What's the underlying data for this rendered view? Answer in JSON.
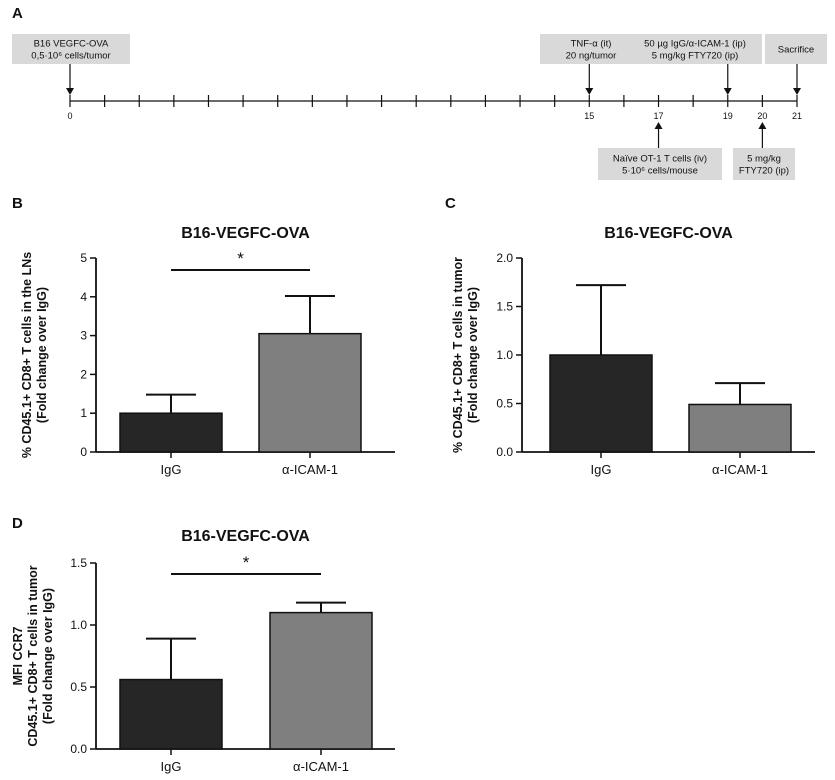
{
  "colors": {
    "igg": "#262626",
    "aicam": "#7f7f7f",
    "box": "#d9d9d9",
    "axis": "#111111"
  },
  "timeline": {
    "letter": "A",
    "days": [
      0,
      15,
      17,
      19,
      20,
      21
    ],
    "max_day": 21,
    "events": [
      {
        "day": 0,
        "side": "above",
        "lines": [
          "B16 VEGFC-OVA",
          "0,5·10⁶ cells/tumor"
        ]
      },
      {
        "day": 15,
        "side": "above",
        "lines": [
          "TNF-α (it)",
          "20 ng/tumor"
        ]
      },
      {
        "day": 19,
        "side": "above",
        "lines": [
          "50 µg IgG/α-ICAM-1 (ip)",
          "5 mg/kg FTY720 (ip)"
        ]
      },
      {
        "day": 21,
        "side": "above",
        "lines": [
          "Sacrifice"
        ]
      },
      {
        "day": 17,
        "side": "below",
        "lines": [
          "Naïve OT-1 T cells (iv)",
          "5·10⁶ cells/mouse"
        ]
      },
      {
        "day": 20,
        "side": "below",
        "lines": [
          "5 mg/kg",
          "FTY720 (ip)"
        ]
      }
    ]
  },
  "chart_data": [
    {
      "id": "B",
      "type": "bar",
      "letter": "B",
      "title": "B16-VEGFC-OVA",
      "categories": [
        "IgG",
        "α-ICAM-1"
      ],
      "values": [
        1.0,
        3.05
      ],
      "errors": [
        0.48,
        0.97
      ],
      "ylim": [
        0,
        5
      ],
      "yticks": [
        "0",
        "1",
        "2",
        "3",
        "4",
        "5"
      ],
      "ytick_values": [
        0,
        1,
        2,
        3,
        4,
        5
      ],
      "ylabel": [
        "% CD45.1+ CD8+ T cells in the LNs",
        "(Fold change over IgG)"
      ],
      "significance": "*"
    },
    {
      "id": "C",
      "type": "bar",
      "letter": "C",
      "title": "B16-VEGFC-OVA",
      "categories": [
        "IgG",
        "α-ICAM-1"
      ],
      "values": [
        1.0,
        0.49
      ],
      "errors": [
        0.72,
        0.22
      ],
      "ylim": [
        0,
        2.0
      ],
      "yticks": [
        "0.0",
        "0.5",
        "1.0",
        "1.5",
        "2.0"
      ],
      "ytick_values": [
        0,
        0.5,
        1.0,
        1.5,
        2.0
      ],
      "ylabel": [
        "% CD45.1+ CD8+ T cells in tumor",
        "(Fold change over IgG)"
      ],
      "significance": ""
    },
    {
      "id": "D",
      "type": "bar",
      "letter": "D",
      "title": "B16-VEGFC-OVA",
      "categories": [
        "IgG",
        "α-ICAM-1"
      ],
      "values": [
        0.56,
        1.1
      ],
      "errors": [
        0.33,
        0.08
      ],
      "ylim": [
        0,
        1.5
      ],
      "yticks": [
        "0.0",
        "0.5",
        "1.0",
        "1.5"
      ],
      "ytick_values": [
        0,
        0.5,
        1.0,
        1.5
      ],
      "ylabel": [
        "MFI CCR7",
        "CD45.1+ CD8+ T cells in tumor",
        "(Fold change over IgG)"
      ],
      "significance": "*"
    }
  ]
}
